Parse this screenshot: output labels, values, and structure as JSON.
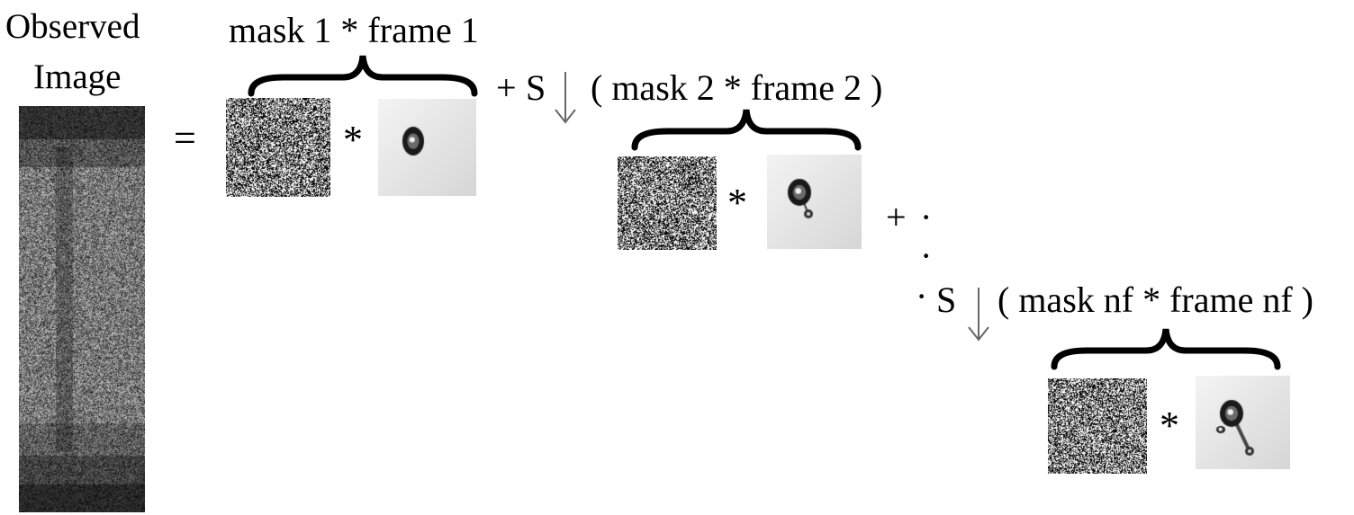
{
  "observed": {
    "title_line1": "Observed",
    "title_line2": "Image",
    "equals": "="
  },
  "term1": {
    "label": "mask 1 * frame 1",
    "mask_name": "mask 1",
    "frame_name": "frame 1",
    "times": "*"
  },
  "term2": {
    "plus": "+",
    "shift": "S",
    "label": "( mask 2 * frame 2 )",
    "mask_name": "mask 2",
    "frame_name": "frame 2",
    "times": "*"
  },
  "term_nf": {
    "plus": "+",
    "shift": "S",
    "label": "( mask nf * frame nf )",
    "mask_name": "mask nf",
    "frame_name": "frame nf",
    "times": "*"
  },
  "ellipsis": [
    "·",
    "·",
    "·"
  ],
  "colors": {
    "text": "#000000",
    "arrow": "#666666",
    "frame_background": "#e4e4e4",
    "droplet": "#1a1a1a"
  }
}
